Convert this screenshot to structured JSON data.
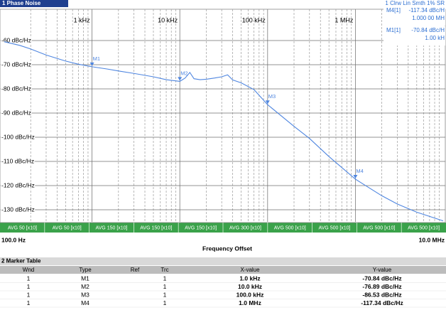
{
  "window_title": "1 Phase Noise",
  "trace_info": "1 Clrw Lin Smth 1% SR",
  "marker_readout": [
    {
      "label": "M4[1]",
      "value": "-117.34 dBc/H",
      "position": "1.000 00 MH"
    },
    {
      "label": "M1[1]",
      "value": "-70.84 dBc/H",
      "position": "1.00 kH"
    }
  ],
  "chart_data": {
    "type": "line",
    "x_log": true,
    "xlim": [
      100,
      10000000
    ],
    "xticks": [
      {
        "value": 1000,
        "label": "1 kHz"
      },
      {
        "value": 10000,
        "label": "10 kHz"
      },
      {
        "value": 100000,
        "label": "100 kHz"
      },
      {
        "value": 1000000,
        "label": "1 MHz"
      }
    ],
    "ylim": [
      -135,
      -50
    ],
    "yticks": [
      {
        "value": -60,
        "label": "-60 dBc/Hz"
      },
      {
        "value": -70,
        "label": "-70 dBc/Hz"
      },
      {
        "value": -80,
        "label": "-80 dBc/Hz"
      },
      {
        "value": -90,
        "label": "-90 dBc/Hz"
      },
      {
        "value": -100,
        "label": "-100 dBc/Hz"
      },
      {
        "value": -110,
        "label": "-110 dBc/Hz"
      },
      {
        "value": -120,
        "label": "-120 dBc/Hz"
      },
      {
        "value": -130,
        "label": "-130 dBc/Hz"
      }
    ],
    "grid": true,
    "series": [
      {
        "color": "#4f86e0",
        "x": [
          100,
          150,
          200,
          300,
          500,
          700,
          1000,
          1500,
          2000,
          3000,
          5000,
          7000,
          10000,
          11500,
          13000,
          14500,
          17000,
          20000,
          25000,
          30000,
          35000,
          40000,
          50000,
          70000,
          100000,
          200000,
          300000,
          500000,
          1000000,
          2000000,
          3000000,
          5000000,
          10000000
        ],
        "values": [
          -60.5,
          -62,
          -63.5,
          -66,
          -68.5,
          -69.8,
          -70.84,
          -71.8,
          -72.6,
          -73.6,
          -75,
          -76.2,
          -76.89,
          -75.5,
          -73.2,
          -75.8,
          -76.2,
          -76,
          -75.5,
          -75,
          -74.2,
          -76.3,
          -77.5,
          -80.3,
          -86.53,
          -95.5,
          -100.5,
          -108,
          -117.34,
          -124.2,
          -127.6,
          -131,
          -134.6
        ]
      }
    ],
    "markers": [
      {
        "name": "M1",
        "x": 1000,
        "y": -70.84
      },
      {
        "name": "M2",
        "x": 10000,
        "y": -76.89
      },
      {
        "name": "M3",
        "x": 100000,
        "y": -86.53
      },
      {
        "name": "M4",
        "x": 1000000,
        "y": -117.34
      }
    ],
    "avg_segments": [
      "AVG 50 [x10]",
      "AVG 50 [x10]",
      "AVG 150 [x10]",
      "AVG 150 [x10]",
      "AVG 150 [x10]",
      "AVG 300 [x10]",
      "AVG 500 [x10]",
      "AVG 500 [x10]",
      "AVG 500 [x10]",
      "AVG 500 [x10]"
    ],
    "start_label": "100.0 Hz",
    "stop_label": "10.0 MHz",
    "x_label": "Frequency Offset"
  },
  "marker_table": {
    "title": "2 Marker Table",
    "columns": [
      "Wnd",
      "Type",
      "Ref",
      "Trc",
      "X-value",
      "Y-value"
    ],
    "rows": [
      [
        "1",
        "M1",
        "",
        "1",
        "1.0 kHz",
        "-70.84 dBc/Hz"
      ],
      [
        "1",
        "M2",
        "",
        "1",
        "10.0 kHz",
        "-76.89 dBc/Hz"
      ],
      [
        "1",
        "M3",
        "",
        "1",
        "100.0 kHz",
        "-86.53 dBc/Hz"
      ],
      [
        "1",
        "M4",
        "",
        "1",
        "1.0 MHz",
        "-117.34 dBc/Hz"
      ]
    ]
  }
}
